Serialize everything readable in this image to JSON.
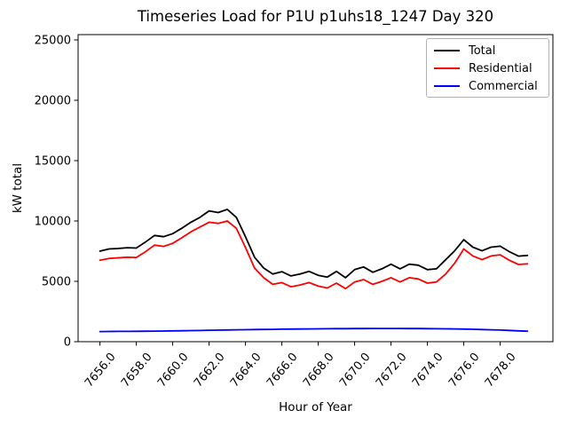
{
  "chart_data": {
    "type": "line",
    "title": "Timeseries Load for P1U p1uhs18_1247  Day 320",
    "xlabel": "Hour of Year",
    "ylabel": "kW total",
    "xlim": [
      7654.8,
      7680.9
    ],
    "ylim": [
      0,
      25440
    ],
    "xticks": [
      7656,
      7658,
      7660,
      7662,
      7664,
      7666,
      7668,
      7670,
      7672,
      7674,
      7676,
      7678
    ],
    "xtick_labels": [
      "7656.0",
      "7658.0",
      "7660.0",
      "7662.0",
      "7664.0",
      "7666.0",
      "7668.0",
      "7670.0",
      "7672.0",
      "7674.0",
      "7676.0",
      "7678.0"
    ],
    "yticks": [
      0,
      5000,
      10000,
      15000,
      20000,
      25000
    ],
    "ytick_labels": [
      "0",
      "5000",
      "10000",
      "15000",
      "20000",
      "25000"
    ],
    "grid": false,
    "legend_position": "upper right",
    "x": [
      7656.0,
      7656.5,
      7657.0,
      7657.5,
      7658.0,
      7658.5,
      7659.0,
      7659.5,
      7660.0,
      7660.5,
      7661.0,
      7661.5,
      7662.0,
      7662.5,
      7663.0,
      7663.5,
      7664.0,
      7664.5,
      7665.0,
      7665.5,
      7666.0,
      7666.5,
      7667.0,
      7667.5,
      7668.0,
      7668.5,
      7669.0,
      7669.5,
      7670.0,
      7670.5,
      7671.0,
      7671.5,
      7672.0,
      7672.5,
      7673.0,
      7673.5,
      7674.0,
      7674.5,
      7675.0,
      7675.5,
      7676.0,
      7676.5,
      7677.0,
      7677.5,
      7678.0,
      7678.5,
      7679.0,
      7679.5
    ],
    "series": [
      {
        "name": "Total",
        "color": "#000000",
        "values": [
          7500,
          7680,
          7720,
          7790,
          7760,
          8250,
          8800,
          8700,
          8950,
          9400,
          9900,
          10300,
          10840,
          10700,
          10960,
          10300,
          8700,
          7000,
          6100,
          5600,
          5800,
          5450,
          5600,
          5820,
          5500,
          5350,
          5820,
          5300,
          5970,
          6190,
          5750,
          6040,
          6420,
          6040,
          6420,
          6340,
          5970,
          6040,
          6790,
          7530,
          8450,
          7830,
          7530,
          7830,
          7910,
          7460,
          7090,
          7150
        ]
      },
      {
        "name": "Residential",
        "color": "#ff0000",
        "values": [
          6750,
          6900,
          6950,
          7000,
          6980,
          7450,
          8000,
          7900,
          8150,
          8600,
          9100,
          9500,
          9900,
          9800,
          10000,
          9400,
          7800,
          6100,
          5300,
          4750,
          4900,
          4550,
          4700,
          4900,
          4600,
          4450,
          4850,
          4400,
          4950,
          5150,
          4750,
          5000,
          5300,
          4950,
          5300,
          5200,
          4850,
          4950,
          5600,
          6500,
          7680,
          7100,
          6800,
          7100,
          7200,
          6750,
          6400,
          6450
        ]
      },
      {
        "name": "Commercial",
        "color": "#0000ff",
        "values": [
          840,
          845,
          850,
          855,
          860,
          868,
          876,
          885,
          895,
          905,
          918,
          930,
          945,
          958,
          970,
          982,
          995,
          1005,
          1015,
          1025,
          1035,
          1045,
          1052,
          1060,
          1066,
          1072,
          1078,
          1083,
          1087,
          1090,
          1093,
          1095,
          1095,
          1093,
          1090,
          1086,
          1081,
          1075,
          1068,
          1060,
          1045,
          1028,
          1008,
          985,
          960,
          932,
          900,
          865
        ]
      }
    ]
  }
}
